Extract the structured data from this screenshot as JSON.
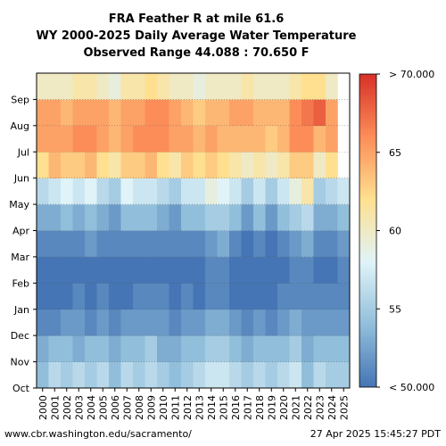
{
  "chart_data": {
    "type": "heatmap",
    "title": [
      "FRA Feather R at mile 61.6",
      "WY 2000-2025 Daily Average Water Temperature",
      "Observed Range 44.088 : 70.650 F"
    ],
    "xlabel": "",
    "ylabel": "",
    "x_categories": [
      "2000",
      "2001",
      "2002",
      "2003",
      "2004",
      "2005",
      "2006",
      "2007",
      "2008",
      "2009",
      "2010",
      "2011",
      "2012",
      "2013",
      "2014",
      "2015",
      "2016",
      "2017",
      "2018",
      "2019",
      "2020",
      "2021",
      "2022",
      "2023",
      "2024",
      "2025"
    ],
    "y_categories": [
      "Oct",
      "Nov",
      "Dec",
      "Jan",
      "Feb",
      "Mar",
      "Apr",
      "May",
      "Jun",
      "Jul",
      "Aug",
      "Sep"
    ],
    "series": [
      {
        "year": "2000",
        "values": [
          54,
          53,
          51,
          50,
          50,
          51,
          53,
          56,
          62,
          65,
          65,
          60
        ]
      },
      {
        "year": "2001",
        "values": [
          56,
          54,
          51,
          50,
          50,
          51,
          53,
          57,
          64,
          65,
          65,
          60
        ]
      },
      {
        "year": "2002",
        "values": [
          55,
          54,
          52,
          50,
          50,
          51,
          54,
          58,
          63,
          65,
          64,
          60
        ]
      },
      {
        "year": "2003",
        "values": [
          56,
          53,
          52,
          51,
          50,
          51,
          53,
          57,
          63,
          66,
          65,
          61
        ]
      },
      {
        "year": "2004",
        "values": [
          55,
          54,
          51,
          50,
          50,
          52,
          54,
          58,
          64,
          66,
          65,
          61
        ]
      },
      {
        "year": "2005",
        "values": [
          56,
          54,
          52,
          51,
          50,
          51,
          53,
          56,
          62,
          65,
          65,
          60
        ]
      },
      {
        "year": "2006",
        "values": [
          54,
          53,
          51,
          50,
          50,
          51,
          52,
          55,
          61,
          64,
          64,
          59
        ]
      },
      {
        "year": "2007",
        "values": [
          56,
          54,
          52,
          50,
          50,
          51,
          54,
          58,
          63,
          65,
          65,
          61
        ]
      },
      {
        "year": "2008",
        "values": [
          55,
          54,
          52,
          51,
          50,
          51,
          54,
          57,
          63,
          66,
          65,
          61
        ]
      },
      {
        "year": "2009",
        "values": [
          56,
          55,
          52,
          51,
          50,
          51,
          54,
          57,
          64,
          66,
          66,
          62
        ]
      },
      {
        "year": "2010",
        "values": [
          55,
          53,
          52,
          51,
          50,
          51,
          53,
          56,
          62,
          66,
          66,
          61
        ]
      },
      {
        "year": "2011",
        "values": [
          54,
          53,
          51,
          50,
          50,
          51,
          52,
          55,
          61,
          65,
          65,
          60
        ]
      },
      {
        "year": "2012",
        "values": [
          55,
          54,
          52,
          51,
          50,
          51,
          54,
          57,
          63,
          65,
          64,
          60
        ]
      },
      {
        "year": "2013",
        "values": [
          56,
          54,
          52,
          50,
          50,
          51,
          54,
          57,
          62,
          64,
          63,
          59
        ]
      },
      {
        "year": "2014",
        "values": [
          57,
          55,
          53,
          51,
          51,
          52,
          55,
          59,
          63,
          65,
          64,
          60
        ]
      },
      {
        "year": "2015",
        "values": [
          57,
          55,
          53,
          51,
          51,
          53,
          55,
          58,
          62,
          64,
          64,
          60
        ]
      },
      {
        "year": "2016",
        "values": [
          56,
          54,
          52,
          50,
          50,
          51,
          54,
          57,
          61,
          64,
          65,
          60
        ]
      },
      {
        "year": "2017",
        "values": [
          55,
          53,
          51,
          50,
          50,
          50,
          52,
          55,
          60,
          64,
          65,
          61
        ]
      },
      {
        "year": "2018",
        "values": [
          56,
          54,
          52,
          50,
          50,
          51,
          54,
          57,
          61,
          64,
          64,
          60
        ]
      },
      {
        "year": "2019",
        "values": [
          55,
          54,
          51,
          50,
          50,
          50,
          52,
          55,
          60,
          63,
          64,
          60
        ]
      },
      {
        "year": "2020",
        "values": [
          56,
          54,
          52,
          51,
          50,
          51,
          54,
          57,
          61,
          64,
          64,
          60
        ]
      },
      {
        "year": "2021",
        "values": [
          57,
          55,
          53,
          51,
          51,
          52,
          55,
          59,
          63,
          66,
          66,
          61
        ]
      },
      {
        "year": "2022",
        "values": [
          54,
          53,
          52,
          51,
          51,
          53,
          56,
          61,
          63,
          66,
          67,
          62
        ]
      },
      {
        "year": "2023",
        "values": [
          56,
          54,
          52,
          51,
          50,
          51,
          53,
          55,
          60,
          64,
          68,
          62
        ]
      },
      {
        "year": "2024",
        "values": [
          55,
          54,
          52,
          51,
          50,
          51,
          53,
          56,
          62,
          65,
          65,
          60
        ]
      },
      {
        "year": "2025",
        "values": [
          55,
          54,
          52,
          51,
          51,
          52,
          54,
          57,
          null,
          null,
          null,
          null
        ]
      }
    ],
    "colorbar": {
      "min": 50,
      "max": 70,
      "ticks": [
        55,
        60,
        65
      ],
      "min_label": "< 50.000",
      "max_label": "> 70.000",
      "colors": [
        "#4575b4",
        "#91bfdb",
        "#e0f3f8",
        "#fee090",
        "#fc8d59",
        "#d73027"
      ]
    },
    "grid": true
  },
  "footer": {
    "source": "www.cbr.washington.edu/sacramento/",
    "timestamp": "27 Apr 2025 15:45:27 PDT"
  }
}
